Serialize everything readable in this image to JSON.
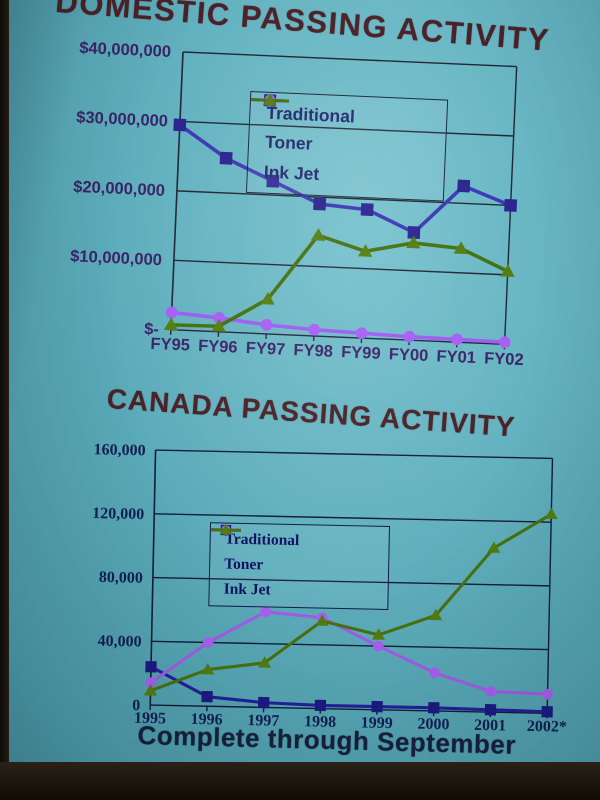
{
  "slide": {
    "footer": "Complete through September",
    "title_color": "#4b2127",
    "footer_color": "#17203c",
    "screen_color": "#65b3c1",
    "surround_color": "#17110a"
  },
  "chart_data": [
    {
      "type": "line",
      "title": "DOMESTIC PASSING ACTIVITY",
      "xlabel": "",
      "ylabel": "",
      "categories": [
        "FY95",
        "FY96",
        "FY97",
        "FY98",
        "FY99",
        "FY00",
        "FY01",
        "FY02"
      ],
      "series": [
        {
          "name": "Traditional",
          "marker": "square",
          "color": "#3d37b5",
          "marker_color": "#2a2490",
          "values": [
            29500000,
            25000000,
            22000000,
            19000000,
            18500000,
            15500000,
            22500000,
            20000000
          ]
        },
        {
          "name": "Toner",
          "marker": "circle",
          "color": "#9d5cf0",
          "marker_color": "#a55ff5",
          "values": [
            2500000,
            2000000,
            1300000,
            900000,
            700000,
            500000,
            400000,
            300000
          ]
        },
        {
          "name": "Ink Jet",
          "marker": "triangle",
          "color": "#44700f",
          "marker_color": "#537d10",
          "values": [
            700000,
            800000,
            5000000,
            14500000,
            12500000,
            14000000,
            13500000,
            10500000
          ]
        }
      ],
      "ylim": [
        0,
        40000000
      ],
      "yticks": [
        {
          "v": 40000000,
          "label": "$40,000,000"
        },
        {
          "v": 30000000,
          "label": "$30,000,000"
        },
        {
          "v": 20000000,
          "label": "$20,000,000"
        },
        {
          "v": 10000000,
          "label": "$10,000,000"
        },
        {
          "v": 0,
          "label": "$-"
        }
      ],
      "grid": true,
      "legend_position": "top-center",
      "axis_color": "#202636",
      "label_color": "#3b2369",
      "line_width": 3.6,
      "marker_size": 6.2
    },
    {
      "type": "line",
      "title": "CANADA PASSING ACTIVITY",
      "xlabel": "",
      "ylabel": "",
      "categories": [
        "1995",
        "1996",
        "1997",
        "1998",
        "1999",
        "2000",
        "2001",
        "2002*"
      ],
      "series": [
        {
          "name": "Traditional",
          "marker": "square",
          "color": "#23209a",
          "marker_color": "#1d1a84",
          "values": [
            24000,
            6000,
            3000,
            2000,
            2000,
            2000,
            1500,
            1000
          ]
        },
        {
          "name": "Toner",
          "marker": "circle",
          "color": "#a25ce6",
          "marker_color": "#a85ff0",
          "values": [
            14000,
            40000,
            60000,
            57000,
            40000,
            24000,
            13000,
            12000
          ]
        },
        {
          "name": "Ink Jet",
          "marker": "triangle",
          "color": "#47720f",
          "marker_color": "#527d10",
          "values": [
            9000,
            23000,
            28000,
            55000,
            47000,
            60000,
            103000,
            125000
          ]
        }
      ],
      "ylim": [
        0,
        160000
      ],
      "yticks": [
        {
          "v": 160000,
          "label": "160,000"
        },
        {
          "v": 120000,
          "label": "120,000"
        },
        {
          "v": 80000,
          "label": "80,000"
        },
        {
          "v": 40000,
          "label": "40,000"
        },
        {
          "v": 0,
          "label": "0"
        }
      ],
      "grid": true,
      "legend_position": "upper-left",
      "axis_color": "#141c3a",
      "label_color": "#131f54",
      "line_width": 3.1,
      "marker_size": 5.6
    }
  ]
}
